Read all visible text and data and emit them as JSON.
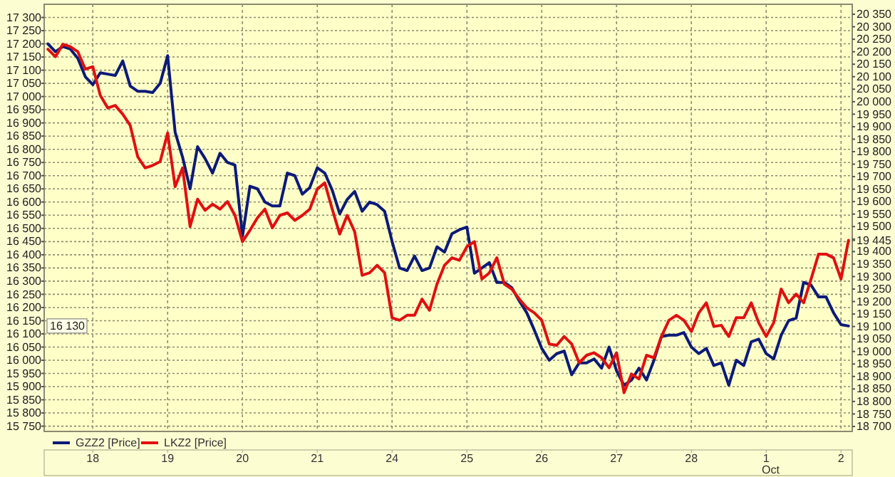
{
  "chart_data": {
    "type": "line",
    "categories": [
      null,
      null,
      null,
      null,
      null,
      null,
      "18",
      null,
      null,
      null,
      null,
      null,
      null,
      null,
      null,
      null,
      "19",
      null,
      null,
      null,
      null,
      null,
      null,
      null,
      null,
      null,
      "20",
      null,
      null,
      null,
      null,
      null,
      null,
      null,
      null,
      null,
      "21",
      null,
      null,
      null,
      null,
      null,
      null,
      null,
      null,
      null,
      "24",
      null,
      null,
      null,
      null,
      null,
      null,
      null,
      null,
      null,
      "25",
      null,
      null,
      null,
      null,
      null,
      null,
      null,
      null,
      null,
      "26",
      null,
      null,
      null,
      null,
      null,
      null,
      null,
      null,
      null,
      "27",
      null,
      null,
      null,
      null,
      null,
      null,
      null,
      null,
      null,
      "28",
      null,
      null,
      null,
      null,
      null,
      null,
      null,
      null,
      null,
      "1",
      null,
      null,
      null,
      null,
      null,
      null,
      null,
      null,
      null,
      "2",
      null
    ],
    "series": [
      {
        "name": "GZZ2 [Price]",
        "color": "#0c1a78",
        "axis": "y",
        "values": [
          17200,
          17170,
          17190,
          17180,
          17145,
          17075,
          17045,
          17090,
          17085,
          17080,
          17135,
          17040,
          17020,
          17020,
          17015,
          17050,
          17155,
          16865,
          16770,
          16650,
          16810,
          16765,
          16710,
          16785,
          16750,
          16740,
          16470,
          16660,
          16650,
          16600,
          16585,
          16585,
          16710,
          16700,
          16630,
          16655,
          16730,
          16710,
          16645,
          16555,
          16610,
          16640,
          16565,
          16600,
          16590,
          16565,
          16450,
          16350,
          16340,
          16395,
          16340,
          16350,
          16430,
          16410,
          16480,
          16495,
          16505,
          16330,
          16350,
          16370,
          16295,
          16295,
          16275,
          16225,
          16180,
          16115,
          16045,
          16000,
          16025,
          16035,
          15945,
          15990,
          15990,
          16005,
          15970,
          16050,
          15960,
          15905,
          15925,
          15970,
          15925,
          16000,
          16090,
          16095,
          16095,
          16105,
          16050,
          16025,
          16045,
          15980,
          15990,
          15905,
          16000,
          15980,
          16070,
          16080,
          16025,
          16005,
          16095,
          16150,
          16160,
          16295,
          16285,
          16240,
          16240,
          16180,
          16135,
          16130
        ]
      },
      {
        "name": "LKZ2 [Price]",
        "color": "#e01010",
        "axis": "y2",
        "values": [
          20210,
          20180,
          20230,
          20220,
          20200,
          20130,
          20140,
          20025,
          19975,
          19985,
          19950,
          19905,
          19780,
          19735,
          19745,
          19760,
          19875,
          19660,
          19735,
          19500,
          19610,
          19565,
          19590,
          19570,
          19600,
          19545,
          19440,
          19485,
          19535,
          19570,
          19495,
          19545,
          19555,
          19525,
          19545,
          19570,
          19650,
          19675,
          19570,
          19470,
          19545,
          19480,
          19305,
          19315,
          19345,
          19315,
          19135,
          19125,
          19145,
          19145,
          19210,
          19165,
          19270,
          19345,
          19375,
          19365,
          19420,
          19440,
          19290,
          19315,
          19375,
          19270,
          19250,
          19210,
          19175,
          19155,
          19125,
          19030,
          19025,
          19060,
          19030,
          18955,
          18985,
          18995,
          18975,
          18935,
          18995,
          18835,
          18910,
          18890,
          18985,
          18975,
          19060,
          19125,
          19145,
          19125,
          19080,
          19155,
          19195,
          19100,
          19105,
          19060,
          19135,
          19135,
          19195,
          19115,
          19060,
          19115,
          19250,
          19195,
          19230,
          19195,
          19290,
          19390,
          19390,
          19375,
          19290,
          19445
        ]
      }
    ],
    "ylim": [
      15730,
      17350
    ],
    "yticks": [
      {
        "value": 15750,
        "label": "15 750"
      },
      {
        "value": 15800,
        "label": "15 800"
      },
      {
        "value": 15850,
        "label": "15 850"
      },
      {
        "value": 15900,
        "label": "15 900"
      },
      {
        "value": 15950,
        "label": "15 950"
      },
      {
        "value": 16000,
        "label": "16 000"
      },
      {
        "value": 16050,
        "label": "16 050"
      },
      {
        "value": 16100,
        "label": "16 100"
      },
      {
        "value": 16150,
        "label": "16 150"
      },
      {
        "value": 16200,
        "label": "16 200"
      },
      {
        "value": 16250,
        "label": "16 250"
      },
      {
        "value": 16300,
        "label": "16 300"
      },
      {
        "value": 16350,
        "label": "16 350"
      },
      {
        "value": 16400,
        "label": "16 400"
      },
      {
        "value": 16450,
        "label": "16 450"
      },
      {
        "value": 16500,
        "label": "16 500"
      },
      {
        "value": 16550,
        "label": "16 550"
      },
      {
        "value": 16600,
        "label": "16 600"
      },
      {
        "value": 16650,
        "label": "16 650"
      },
      {
        "value": 16700,
        "label": "16 700"
      },
      {
        "value": 16750,
        "label": "16 750"
      },
      {
        "value": 16800,
        "label": "16 800"
      },
      {
        "value": 16850,
        "label": "16 850"
      },
      {
        "value": 16900,
        "label": "16 900"
      },
      {
        "value": 16950,
        "label": "16 950"
      },
      {
        "value": 17000,
        "label": "17 000"
      },
      {
        "value": 17050,
        "label": "17 050"
      },
      {
        "value": 17100,
        "label": "17 100"
      },
      {
        "value": 17150,
        "label": "17 150"
      },
      {
        "value": 17200,
        "label": "17 200"
      },
      {
        "value": 17250,
        "label": "17 250"
      },
      {
        "value": 17300,
        "label": "17 300"
      }
    ],
    "y2lim": [
      18680,
      20390
    ],
    "y2ticks": [
      {
        "value": 18700,
        "label": "18 700"
      },
      {
        "value": 18750,
        "label": "18 750"
      },
      {
        "value": 18800,
        "label": "18 800"
      },
      {
        "value": 18850,
        "label": "18 850"
      },
      {
        "value": 18900,
        "label": "18 900"
      },
      {
        "value": 18950,
        "label": "18 950"
      },
      {
        "value": 19000,
        "label": "19 000"
      },
      {
        "value": 19050,
        "label": "19 050"
      },
      {
        "value": 19100,
        "label": "19 100"
      },
      {
        "value": 19150,
        "label": "19 150"
      },
      {
        "value": 19200,
        "label": "19 200"
      },
      {
        "value": 19250,
        "label": "19 250"
      },
      {
        "value": 19300,
        "label": "19 300"
      },
      {
        "value": 19350,
        "label": "19 350"
      },
      {
        "value": 19400,
        "label": "19 400"
      },
      {
        "value": 19445,
        "label": "19 445"
      },
      {
        "value": 19450,
        "label": null
      },
      {
        "value": 19500,
        "label": "19 500"
      },
      {
        "value": 19550,
        "label": "19 550"
      },
      {
        "value": 19600,
        "label": "19 600"
      },
      {
        "value": 19650,
        "label": "19 650"
      },
      {
        "value": 19700,
        "label": "19 700"
      },
      {
        "value": 19750,
        "label": "19 750"
      },
      {
        "value": 19800,
        "label": "19 800"
      },
      {
        "value": 19850,
        "label": "19 850"
      },
      {
        "value": 19900,
        "label": "19 900"
      },
      {
        "value": 19950,
        "label": "19 950"
      },
      {
        "value": 20000,
        "label": "20 000"
      },
      {
        "value": 20050,
        "label": "20 050"
      },
      {
        "value": 20100,
        "label": "20 100"
      },
      {
        "value": 20150,
        "label": "20 150"
      },
      {
        "value": 20200,
        "label": "20 200"
      },
      {
        "value": 20250,
        "label": "20 250"
      },
      {
        "value": 20300,
        "label": "20 300"
      },
      {
        "value": 20350,
        "label": "20 350"
      }
    ],
    "annotations": [
      "Oct",
      {
        "text": "16 130",
        "y": 16130
      }
    ],
    "grid": true,
    "legend": "bottom left"
  }
}
